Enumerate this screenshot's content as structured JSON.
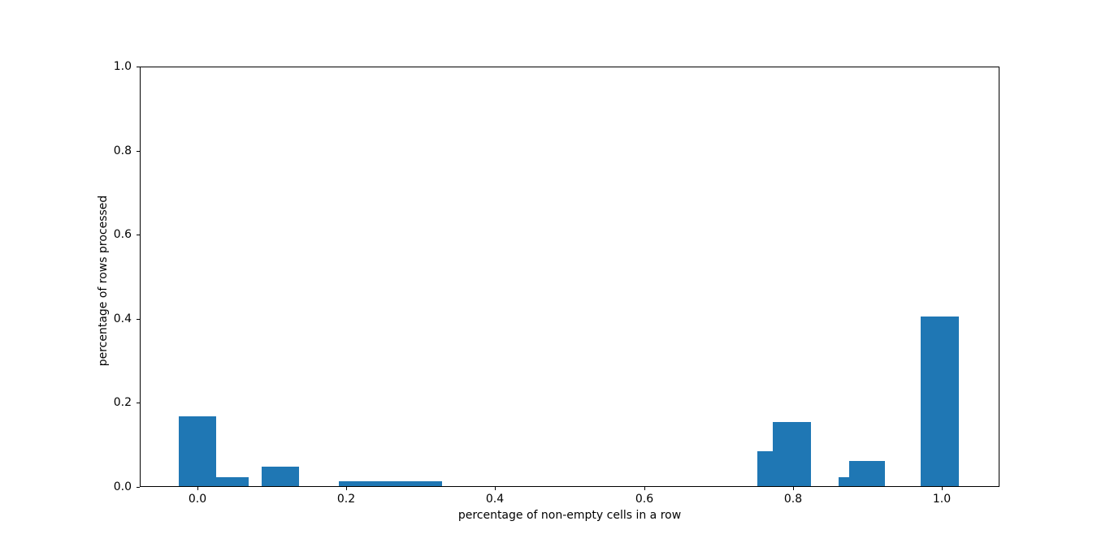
{
  "figure": {
    "background_color": "#ffffff",
    "bar_color": "#1f77b4",
    "spine_color": "#000000",
    "text_color": "#000000"
  },
  "chart_data": {
    "type": "bar",
    "subtype": "histogram",
    "title": "",
    "xlabel": "percentage of non-empty cells in a row",
    "ylabel": "percentage of rows processed",
    "xlim": [
      -0.0775,
      1.0775
    ],
    "ylim": [
      0,
      1.0
    ],
    "grid": false,
    "legend": false,
    "x_ticks": {
      "values": [
        0.0,
        0.2,
        0.4,
        0.6,
        0.8,
        1.0
      ],
      "labels": [
        "0.0",
        "0.2",
        "0.4",
        "0.6",
        "0.8",
        "1.0"
      ]
    },
    "y_ticks": {
      "values": [
        0.0,
        0.2,
        0.4,
        0.6,
        0.8,
        1.0
      ],
      "labels": [
        "0.0",
        "0.2",
        "0.4",
        "0.6",
        "0.8",
        "1.0"
      ]
    },
    "bar_color": "#1f77b4",
    "bars": [
      {
        "x_start": -0.025,
        "x_end": 0.025,
        "height": 0.168
      },
      {
        "x_start": 0.025,
        "x_end": 0.069,
        "height": 0.023
      },
      {
        "x_start": 0.086,
        "x_end": 0.136,
        "height": 0.048
      },
      {
        "x_start": 0.19,
        "x_end": 0.329,
        "height": 0.013
      },
      {
        "x_start": 0.752,
        "x_end": 0.773,
        "height": 0.084
      },
      {
        "x_start": 0.773,
        "x_end": 0.824,
        "height": 0.155
      },
      {
        "x_start": 0.861,
        "x_end": 0.875,
        "height": 0.023
      },
      {
        "x_start": 0.875,
        "x_end": 0.924,
        "height": 0.061
      },
      {
        "x_start": 0.972,
        "x_end": 1.023,
        "height": 0.406
      }
    ]
  }
}
